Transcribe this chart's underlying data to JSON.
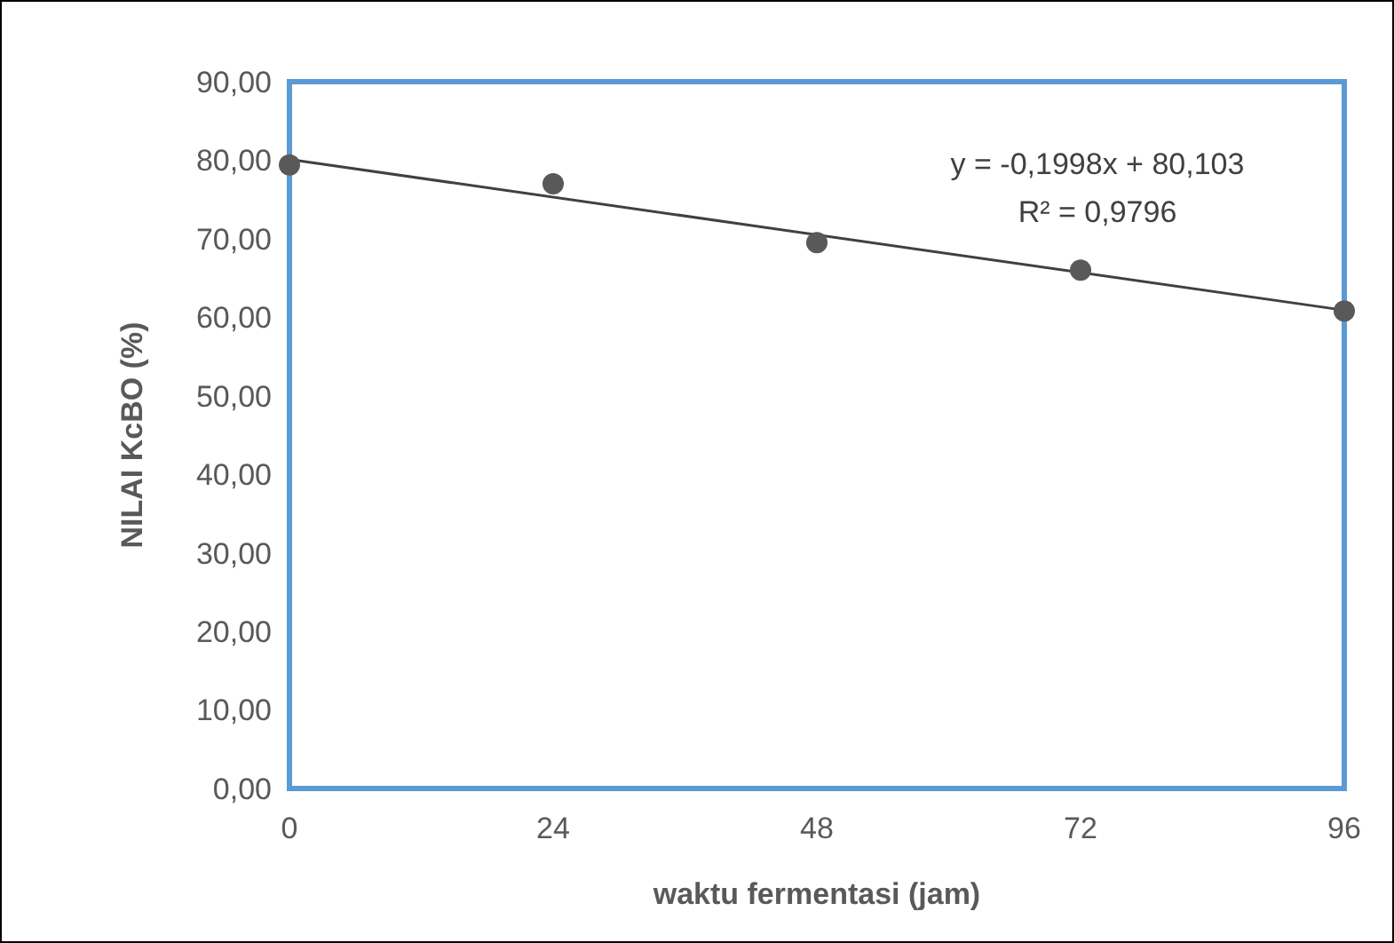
{
  "chart_data": {
    "type": "scatter",
    "xlabel": "waktu fermentasi (jam)",
    "ylabel": "NILAI KcBO (%)",
    "xlim": [
      0,
      96
    ],
    "xticks": [
      0,
      24,
      48,
      72,
      96
    ],
    "ylim": [
      0,
      90
    ],
    "yticks": [
      {
        "value": 0,
        "label": "0,00"
      },
      {
        "value": 10,
        "label": "10,00"
      },
      {
        "value": 20,
        "label": "20,00"
      },
      {
        "value": 30,
        "label": "30,00"
      },
      {
        "value": 40,
        "label": "40,00"
      },
      {
        "value": 50,
        "label": "50,00"
      },
      {
        "value": 60,
        "label": "60,00"
      },
      {
        "value": 70,
        "label": "70,00"
      },
      {
        "value": 80,
        "label": "80,00"
      },
      {
        "value": 90,
        "label": "90,00"
      }
    ],
    "grid": false,
    "series": [
      {
        "marker": "circle",
        "color": "#595959",
        "x": [
          0,
          24,
          48,
          72,
          96
        ],
        "values": [
          79.4,
          77.0,
          69.5,
          66.0,
          60.8
        ]
      },
      {
        "type": "line",
        "color": "#404040",
        "x": [
          0,
          96
        ],
        "values": [
          80.1,
          60.9
        ],
        "line_style": "solid"
      }
    ],
    "annotations": [
      "y = -0,1998x + 80,103",
      "R² = 0,9796"
    ]
  }
}
